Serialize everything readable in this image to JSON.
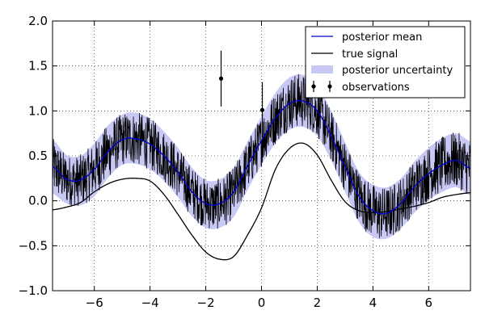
{
  "chart_data": {
    "type": "line",
    "xlim": [
      -7.5,
      7.5
    ],
    "ylim": [
      -1.0,
      2.0
    ],
    "x_ticks": [
      -6,
      -4,
      -2,
      0,
      2,
      4,
      6
    ],
    "x_tick_labels": [
      "−6",
      "−4",
      "−2",
      "0",
      "2",
      "4",
      "6"
    ],
    "y_ticks": [
      -1.0,
      -0.5,
      0.0,
      0.5,
      1.0,
      1.5,
      2.0
    ],
    "y_tick_labels": [
      "−1.0",
      "−0.5",
      "0.0",
      "0.5",
      "1.0",
      "1.5",
      "2.0"
    ],
    "grid": true,
    "legend_position": "top-right",
    "colors": {
      "posterior_mean": "#0000cc",
      "true_signal": "#000000",
      "uncertainty": "#c8c8f5",
      "observations": "#000000"
    },
    "series": [
      {
        "name": "posterior mean",
        "x": [
          -7.5,
          -7,
          -6.5,
          -6,
          -5.5,
          -5,
          -4.5,
          -4,
          -3.5,
          -3,
          -2.5,
          -2,
          -1.5,
          -1,
          -0.5,
          0,
          0.5,
          1,
          1.5,
          2,
          2.5,
          3,
          3.5,
          4,
          4.5,
          5,
          5.5,
          6,
          6.5,
          7,
          7.5
        ],
        "y": [
          0.38,
          0.24,
          0.23,
          0.35,
          0.55,
          0.68,
          0.69,
          0.63,
          0.5,
          0.32,
          0.1,
          -0.03,
          -0.03,
          0.1,
          0.39,
          0.67,
          0.92,
          1.08,
          1.11,
          1.0,
          0.72,
          0.38,
          0.05,
          -0.11,
          -0.14,
          -0.03,
          0.16,
          0.3,
          0.4,
          0.45,
          0.36
        ]
      },
      {
        "name": "true signal",
        "x": [
          -7.5,
          -7,
          -6.5,
          -6,
          -5.5,
          -5,
          -4.5,
          -4,
          -3.5,
          -3,
          -2.5,
          -2,
          -1.5,
          -1,
          -0.5,
          0,
          0.5,
          1,
          1.5,
          2,
          2.5,
          3,
          3.5,
          4,
          4.5,
          5,
          5.5,
          6,
          6.5,
          7,
          7.5
        ],
        "y": [
          -0.1,
          -0.07,
          -0.02,
          0.1,
          0.19,
          0.24,
          0.25,
          0.22,
          0.07,
          -0.15,
          -0.38,
          -0.57,
          -0.65,
          -0.62,
          -0.38,
          -0.08,
          0.35,
          0.58,
          0.64,
          0.51,
          0.23,
          -0.01,
          -0.11,
          -0.13,
          -0.12,
          -0.09,
          -0.06,
          -0.02,
          0.04,
          0.07,
          0.09
        ]
      },
      {
        "name": "posterior uncertainty",
        "x": [
          -7.5,
          -7,
          -6.5,
          -6,
          -5.5,
          -5,
          -4.5,
          -4,
          -3.5,
          -3,
          -2.5,
          -2,
          -1.5,
          -1,
          -0.5,
          0,
          0.5,
          1,
          1.5,
          2,
          2.5,
          3,
          3.5,
          4,
          4.5,
          5,
          5.5,
          6,
          6.5,
          7,
          7.5
        ],
        "lower": [
          0.08,
          -0.03,
          -0.05,
          0.05,
          0.26,
          0.4,
          0.41,
          0.35,
          0.22,
          0.04,
          -0.17,
          -0.3,
          -0.3,
          -0.18,
          0.12,
          0.4,
          0.64,
          0.79,
          0.82,
          0.72,
          0.45,
          0.1,
          -0.24,
          -0.4,
          -0.42,
          -0.31,
          -0.13,
          0.01,
          0.1,
          0.15,
          0.06
        ],
        "upper": [
          0.68,
          0.51,
          0.5,
          0.64,
          0.84,
          0.96,
          0.98,
          0.91,
          0.77,
          0.59,
          0.37,
          0.23,
          0.24,
          0.37,
          0.66,
          0.94,
          1.2,
          1.37,
          1.4,
          1.29,
          1.0,
          0.65,
          0.32,
          0.18,
          0.15,
          0.25,
          0.44,
          0.59,
          0.7,
          0.75,
          0.66
        ]
      },
      {
        "name": "observations",
        "x": [
          -1.45,
          0.03
        ],
        "y": [
          1.36,
          1.01
        ],
        "yerr": [
          0.31,
          0.31
        ]
      }
    ]
  }
}
